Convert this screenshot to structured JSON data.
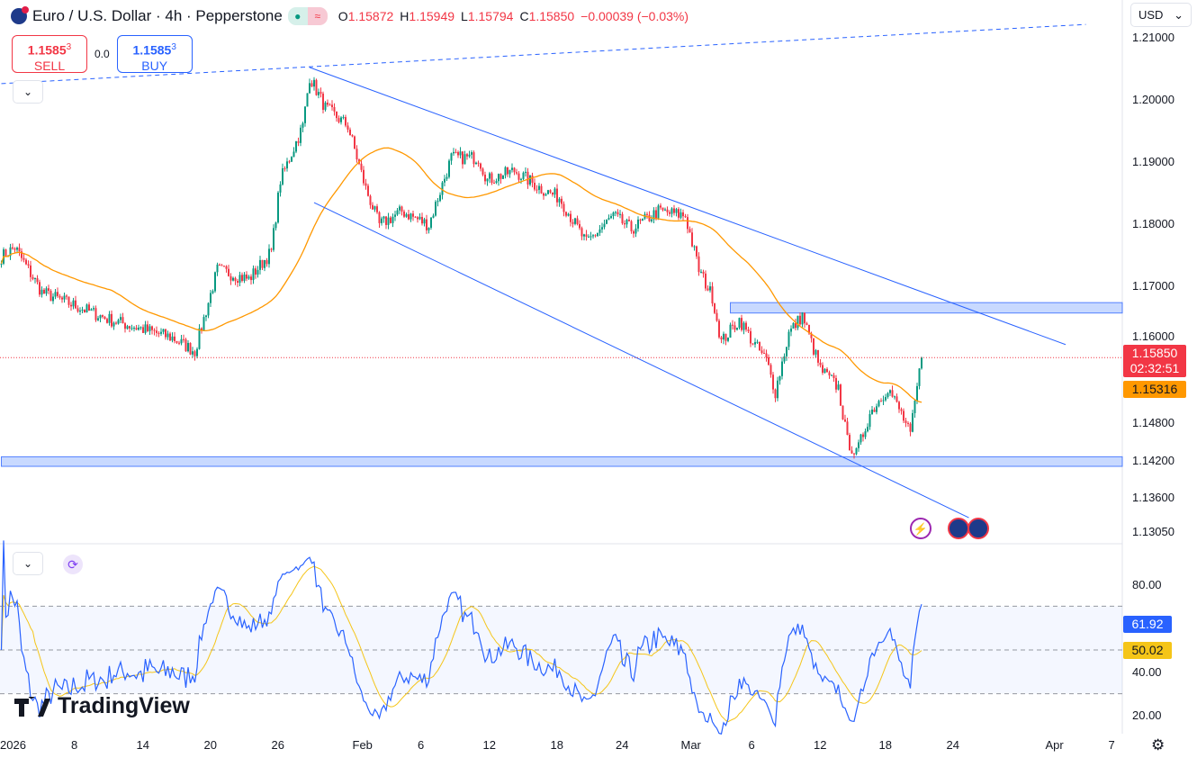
{
  "header": {
    "symbol": "Euro / U.S. Dollar · 4h · Pepperstone",
    "ohlc": [
      {
        "k": "O",
        "v": "1.15872"
      },
      {
        "k": "H",
        "v": "1.15949"
      },
      {
        "k": "L",
        "v": "1.15794"
      },
      {
        "k": "C",
        "v": "1.15850"
      }
    ],
    "change": "−0.00039 (−0.03%)"
  },
  "trade": {
    "sell_price": "1.1585",
    "sell_sup": "3",
    "sell_label": "SELL",
    "spread": "0.0",
    "buy_price": "1.1585",
    "buy_sup": "3",
    "buy_label": "BUY"
  },
  "currency": "USD",
  "logo": "TradingView",
  "last_price": "1.15850",
  "countdown": "02:32:51",
  "ma_value": "1.15316",
  "rsi_value": "61.92",
  "rsi_ma_value": "50.02",
  "colors": {
    "up": "#089981",
    "down": "#f23645",
    "ma": "#ff9800",
    "rsi": "#2962ff",
    "rsi_ma": "#f5c518",
    "line": "#2962ff"
  },
  "chart_data": {
    "type": "candlestick",
    "price_ticks": [
      "1.21000",
      "1.20000",
      "1.19000",
      "1.18000",
      "1.17000",
      "1.16000",
      "1.14800",
      "1.14200",
      "1.13600",
      "1.13050"
    ],
    "ylim": [
      1.1305,
      1.21
    ],
    "rsi_ticks": [
      "80.00",
      "40.00",
      "20.00"
    ],
    "rsi_levels": [
      70,
      50,
      30
    ],
    "x_ticks": [
      {
        "label": "2026",
        "bar": 3
      },
      {
        "label": "8",
        "bar": 35
      },
      {
        "label": "14",
        "bar": 64
      },
      {
        "label": "20",
        "bar": 94
      },
      {
        "label": "26",
        "bar": 124
      },
      {
        "label": "Feb",
        "bar": 160
      },
      {
        "label": "6",
        "bar": 189
      },
      {
        "label": "12",
        "bar": 218
      },
      {
        "label": "18",
        "bar": 248
      },
      {
        "label": "24",
        "bar": 277
      },
      {
        "label": "Mar",
        "bar": 306
      },
      {
        "label": "6",
        "bar": 336
      },
      {
        "label": "12",
        "bar": 365
      },
      {
        "label": "18",
        "bar": 394
      },
      {
        "label": "24",
        "bar": 424
      },
      {
        "label": "Apr",
        "bar": 468
      },
      {
        "label": "7",
        "bar": 496
      }
    ],
    "close_path": [
      [
        0,
        1.1747
      ],
      [
        6,
        1.1762
      ],
      [
        18,
        1.169
      ],
      [
        48,
        1.1646
      ],
      [
        76,
        1.1617
      ],
      [
        86,
        1.1595
      ],
      [
        96,
        1.1726
      ],
      [
        110,
        1.1711
      ],
      [
        120,
        1.1755
      ],
      [
        124,
        1.187
      ],
      [
        134,
        1.1957
      ],
      [
        137,
        1.2036
      ],
      [
        144,
        1.1986
      ],
      [
        154,
        1.1957
      ],
      [
        162,
        1.1856
      ],
      [
        168,
        1.1798
      ],
      [
        178,
        1.182
      ],
      [
        190,
        1.1798
      ],
      [
        200,
        1.1906
      ],
      [
        212,
        1.1906
      ],
      [
        216,
        1.187
      ],
      [
        228,
        1.1885
      ],
      [
        240,
        1.1856
      ],
      [
        248,
        1.1842
      ],
      [
        260,
        1.1769
      ],
      [
        272,
        1.1813
      ],
      [
        280,
        1.1791
      ],
      [
        292,
        1.182
      ],
      [
        304,
        1.1813
      ],
      [
        310,
        1.1726
      ],
      [
        316,
        1.1683
      ],
      [
        320,
        1.161
      ],
      [
        328,
        1.1646
      ],
      [
        334,
        1.161
      ],
      [
        340,
        1.1581
      ],
      [
        344,
        1.153
      ],
      [
        350,
        1.1624
      ],
      [
        356,
        1.1653
      ],
      [
        364,
        1.1566
      ],
      [
        372,
        1.1537
      ],
      [
        376,
        1.1451
      ],
      [
        380,
        1.143
      ],
      [
        386,
        1.1495
      ],
      [
        394,
        1.1537
      ],
      [
        400,
        1.1495
      ],
      [
        404,
        1.146
      ],
      [
        407,
        1.1537
      ],
      [
        409,
        1.1585
      ]
    ],
    "trendlines": [
      {
        "style": "dashed",
        "from": [
          0,
          1.2025
        ],
        "to": [
          482,
          1.212
        ]
      },
      {
        "style": "solid",
        "from": [
          137,
          1.2051
        ],
        "to": [
          473,
          1.1606
        ]
      },
      {
        "style": "solid",
        "from": [
          139,
          1.1834
        ],
        "to": [
          430,
          1.1328
        ]
      }
    ],
    "zones": [
      {
        "from_bar": 324,
        "top": 1.1669,
        "bottom": 1.1661
      },
      {
        "from_bar": 0,
        "top": 1.14215,
        "bottom": 1.14148
      }
    ],
    "ma_period": 50,
    "rsi_period": 14
  }
}
